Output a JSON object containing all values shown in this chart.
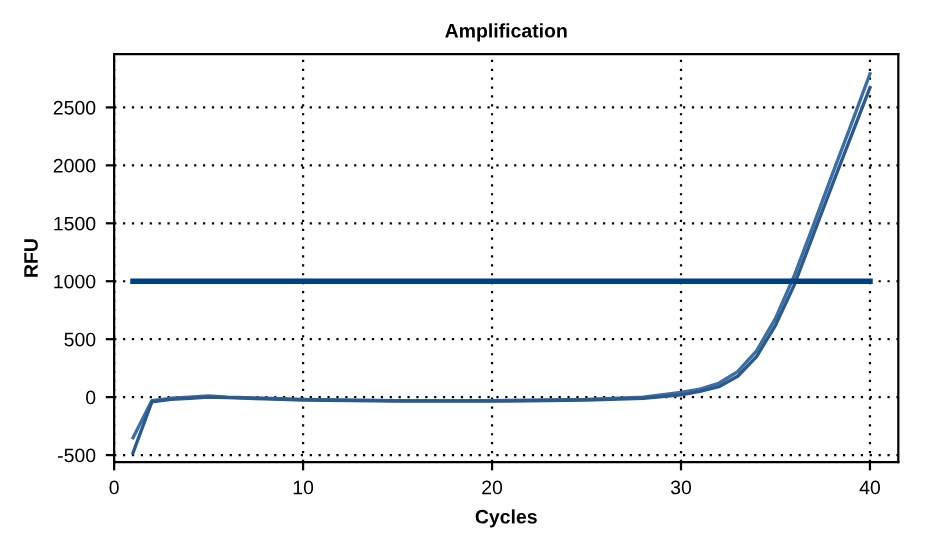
{
  "chart_data": {
    "type": "line",
    "title": "Amplification",
    "xlabel": "Cycles",
    "ylabel": "RFU",
    "xlim": [
      0,
      41.5
    ],
    "xticks": [
      0,
      10,
      20,
      30,
      40
    ],
    "ylim": [
      -560,
      2960
    ],
    "yticks": [
      -500,
      0,
      500,
      1000,
      1500,
      2000,
      2500
    ],
    "grid": true,
    "line_style": "solid",
    "marker": "none",
    "series": [
      {
        "color": "#3a6ea5",
        "x": [
          1,
          2,
          3,
          4,
          5,
          6,
          8,
          10,
          15,
          20,
          25,
          28,
          30,
          31,
          32,
          33,
          34,
          35,
          36,
          37,
          38,
          39,
          40
        ],
        "values": [
          -350,
          -30,
          -10,
          0,
          10,
          0,
          -10,
          -20,
          -30,
          -30,
          -20,
          0,
          40,
          70,
          120,
          220,
          400,
          680,
          1050,
          1480,
          1920,
          2350,
          2790
        ]
      },
      {
        "color": "#2b5a8a",
        "x": [
          1,
          2,
          3,
          4,
          5,
          6,
          8,
          10,
          15,
          20,
          25,
          28,
          30,
          31,
          32,
          33,
          34,
          35,
          36,
          37,
          38,
          39,
          40
        ],
        "values": [
          -480,
          -40,
          -20,
          -10,
          0,
          -5,
          -15,
          -25,
          -35,
          -35,
          -25,
          -10,
          20,
          50,
          90,
          180,
          350,
          620,
          970,
          1400,
          1830,
          2250,
          2670
        ]
      },
      {
        "color": "#004080",
        "x": [
          1,
          40
        ],
        "values": [
          1000,
          1000
        ]
      }
    ]
  }
}
